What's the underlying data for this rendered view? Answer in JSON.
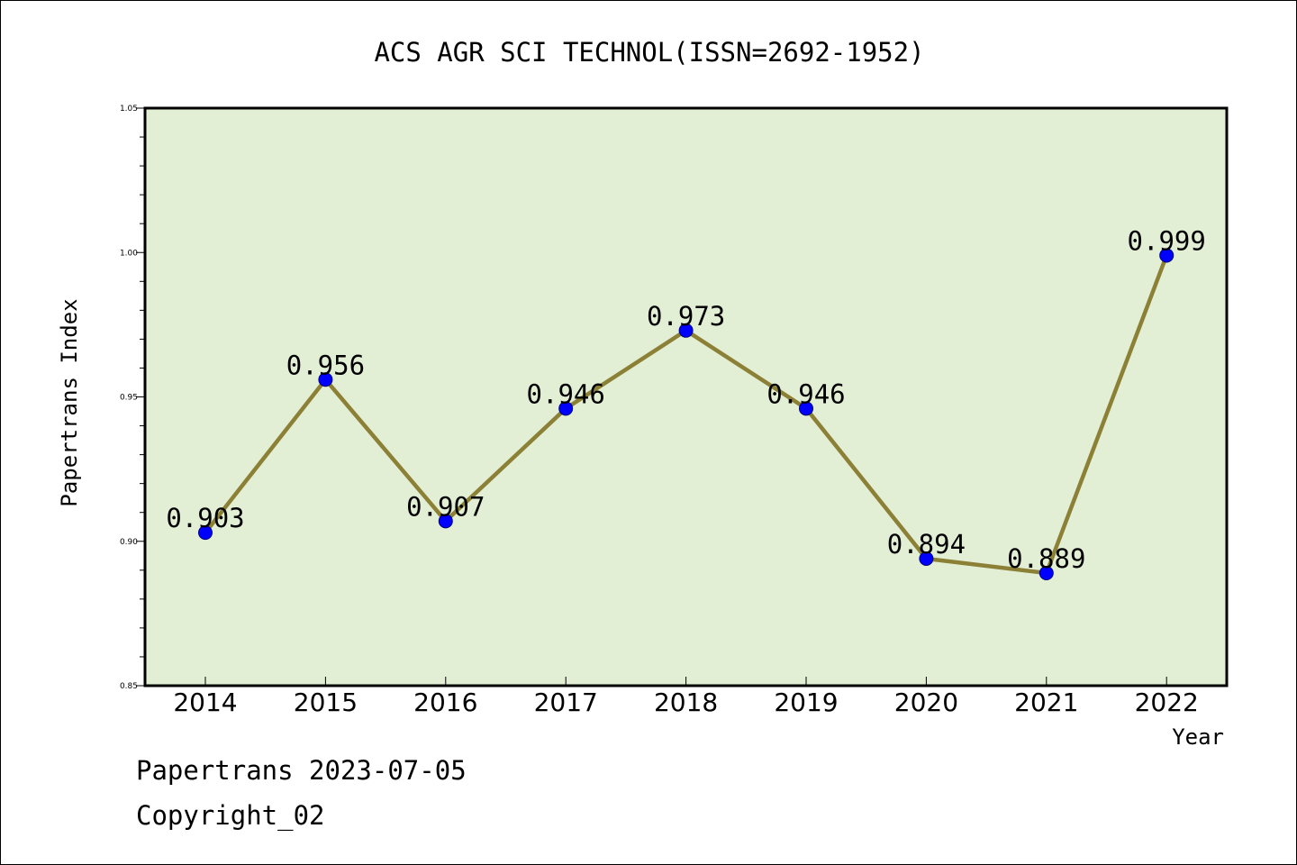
{
  "chart_data": {
    "type": "line",
    "title": "ACS AGR SCI TECHNOL(ISSN=2692-1952)",
    "xlabel": "Year",
    "ylabel": "Papertrans Index",
    "categories": [
      "2014",
      "2015",
      "2016",
      "2017",
      "2018",
      "2019",
      "2020",
      "2021",
      "2022"
    ],
    "values": [
      0.903,
      0.956,
      0.907,
      0.946,
      0.973,
      0.946,
      0.894,
      0.889,
      0.999
    ],
    "data_labels": [
      "0.903",
      "0.956",
      "0.907",
      "0.946",
      "0.973",
      "0.946",
      "0.894",
      "0.889",
      "0.999"
    ],
    "ylim": [
      0.85,
      1.05
    ],
    "y_ticks": [
      0.85,
      0.9,
      0.95,
      1.0,
      1.05
    ],
    "y_tick_labels": [
      "0.85",
      "0.90",
      "0.95",
      "1.00",
      "1.05"
    ],
    "grid": false,
    "legend": "none",
    "colors": {
      "plot_background": "#e2efd5",
      "line": "#8b8035",
      "marker": "#0000ff"
    }
  },
  "footer": {
    "line1": "Papertrans 2023-07-05",
    "line2": "Copyright_02"
  }
}
